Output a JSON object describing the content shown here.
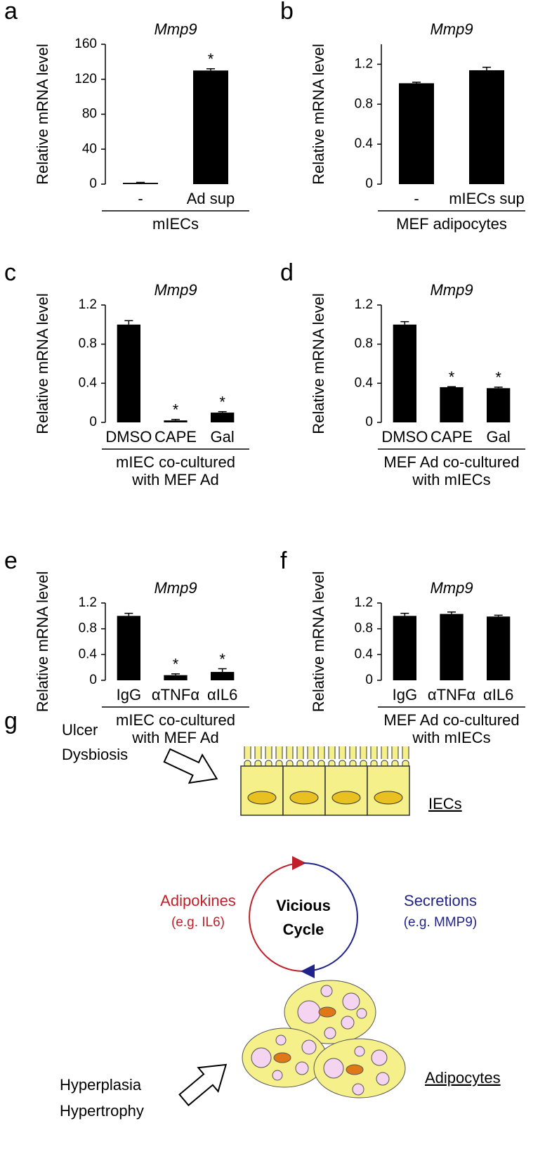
{
  "chart_data": [
    {
      "type": "bar",
      "panel": "a",
      "title": "Mmp9",
      "y_label": "Relative mRNA level",
      "categories": [
        "-",
        "Ad sup"
      ],
      "values": [
        1.5,
        130
      ],
      "errors": [
        0.5,
        2
      ],
      "significance": [
        null,
        "*"
      ],
      "group_label": [
        "mIECs"
      ],
      "color": "#000000",
      "ylim": [
        0,
        160
      ],
      "yticks": [
        0,
        40,
        80,
        120,
        160
      ]
    },
    {
      "type": "bar",
      "panel": "b",
      "title": "Mmp9",
      "y_label": "Relative mRNA level",
      "categories": [
        "-",
        "mIECs sup"
      ],
      "values": [
        1.01,
        1.14
      ],
      "errors": [
        0.01,
        0.03
      ],
      "group_label": [
        "MEF adipocytes"
      ],
      "color": "#000000",
      "ylim": [
        0,
        1.4
      ],
      "yticks": [
        0,
        0.4,
        0.8,
        1.2
      ]
    },
    {
      "type": "bar",
      "panel": "c",
      "title": "Mmp9",
      "y_label": "Relative mRNA level",
      "categories": [
        "DMSO",
        "CAPE",
        "Gal"
      ],
      "values": [
        1.0,
        0.02,
        0.1
      ],
      "errors": [
        0.04,
        0.01,
        0.01
      ],
      "significance": [
        null,
        "*",
        "*"
      ],
      "group_label": [
        "mIEC co-cultured",
        "with MEF Ad"
      ],
      "color": "#000000",
      "ylim": [
        0,
        1.2
      ],
      "yticks": [
        0,
        0.4,
        0.8,
        1.2
      ]
    },
    {
      "type": "bar",
      "panel": "d",
      "title": "Mmp9",
      "y_label": "Relative mRNA level",
      "categories": [
        "DMSO",
        "CAPE",
        "Gal"
      ],
      "values": [
        1.0,
        0.36,
        0.35
      ],
      "errors": [
        0.03,
        0.005,
        0.01
      ],
      "significance": [
        null,
        "*",
        "*"
      ],
      "group_label": [
        "MEF Ad co-cultured",
        "with mIECs"
      ],
      "color": "#000000",
      "ylim": [
        0,
        1.2
      ],
      "yticks": [
        0,
        0.4,
        0.8,
        1.2
      ]
    },
    {
      "type": "bar",
      "panel": "e",
      "title": "Mmp9",
      "y_label": "Relative mRNA level",
      "categories": [
        "IgG",
        "αTNFα",
        "αIL6"
      ],
      "values": [
        1.0,
        0.08,
        0.13
      ],
      "errors": [
        0.04,
        0.02,
        0.05
      ],
      "significance": [
        null,
        "*",
        "*"
      ],
      "group_label": [
        "mIEC co-cultured",
        "with MEF Ad"
      ],
      "color": "#000000",
      "ylim": [
        0,
        1.2
      ],
      "yticks": [
        0,
        0.4,
        0.8,
        1.2
      ]
    },
    {
      "type": "bar",
      "panel": "f",
      "title": "Mmp9",
      "y_label": "Relative mRNA level",
      "categories": [
        "IgG",
        "αTNFα",
        "αIL6"
      ],
      "values": [
        1.0,
        1.03,
        0.99
      ],
      "errors": [
        0.04,
        0.03,
        0.02
      ],
      "group_label": [
        "MEF Ad co-cultured",
        "with mIECs"
      ],
      "color": "#000000",
      "ylim": [
        0,
        1.2
      ],
      "yticks": [
        0,
        0.4,
        0.8,
        1.2
      ]
    }
  ],
  "diagram": {
    "label": "g",
    "inputs_top": [
      "Ulcer",
      "Dysbiosis"
    ],
    "iecs": "IECs",
    "left": [
      "Adipokines",
      "(e.g. IL6)"
    ],
    "center": [
      "Vicious",
      "Cycle"
    ],
    "right": [
      "Secretions",
      "(e.g. MMP9)"
    ],
    "inputs_bottom": [
      "Hyperplasia",
      "Hypertrophy"
    ],
    "adipocytes": "Adipocytes"
  }
}
